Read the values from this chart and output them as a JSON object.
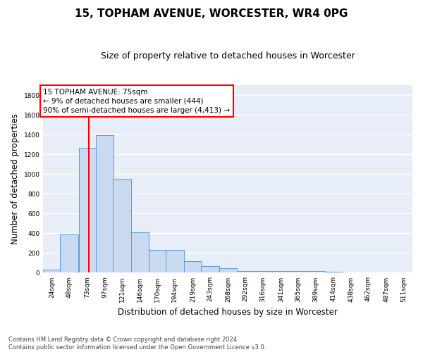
{
  "title1": "15, TOPHAM AVENUE, WORCESTER, WR4 0PG",
  "title2": "Size of property relative to detached houses in Worcester",
  "xlabel": "Distribution of detached houses by size in Worcester",
  "ylabel": "Number of detached properties",
  "footnote": "Contains HM Land Registry data © Crown copyright and database right 2024.\nContains public sector information licensed under the Open Government Licence v3.0.",
  "bar_labels": [
    "24sqm",
    "48sqm",
    "73sqm",
    "97sqm",
    "121sqm",
    "146sqm",
    "170sqm",
    "194sqm",
    "219sqm",
    "243sqm",
    "268sqm",
    "292sqm",
    "316sqm",
    "341sqm",
    "365sqm",
    "389sqm",
    "414sqm",
    "438sqm",
    "462sqm",
    "487sqm",
    "511sqm"
  ],
  "bar_values": [
    30,
    390,
    1265,
    1395,
    950,
    410,
    235,
    235,
    115,
    70,
    45,
    18,
    15,
    15,
    15,
    15,
    10,
    5,
    5,
    5,
    5
  ],
  "bar_color": "#c9d9f0",
  "bar_edge_color": "#5b9bd5",
  "annotation_box_text": "15 TOPHAM AVENUE: 75sqm\n← 9% of detached houses are smaller (444)\n90% of semi-detached houses are larger (4,413) →",
  "red_line_x": 75,
  "ylim": [
    0,
    1900
  ],
  "yticks": [
    0,
    200,
    400,
    600,
    800,
    1000,
    1200,
    1400,
    1600,
    1800
  ],
  "background_color": "#e8eef8",
  "grid_color": "white",
  "title1_fontsize": 11,
  "title2_fontsize": 9,
  "ylabel_fontsize": 8.5,
  "xlabel_fontsize": 8.5,
  "tick_fontsize": 6.5,
  "footnote_fontsize": 6.0
}
